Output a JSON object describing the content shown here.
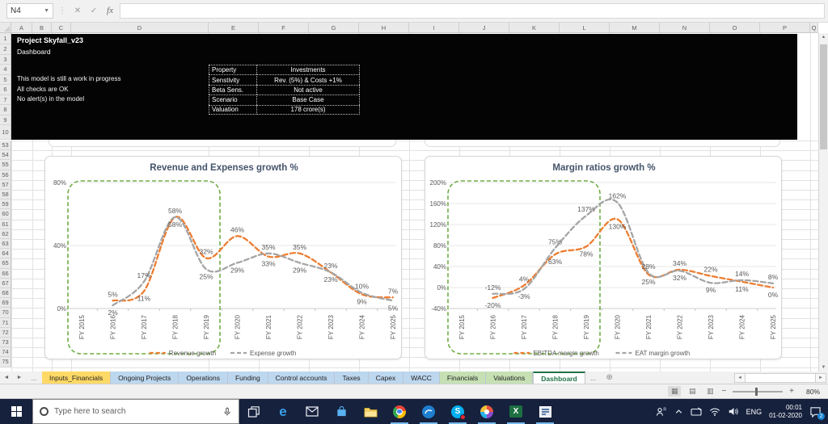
{
  "formula_bar": {
    "name_box": "N4",
    "fx_label": "fx",
    "cancel_glyph": "✕",
    "enter_glyph": "✓"
  },
  "columns": [
    "A",
    "B",
    "C",
    "D",
    "E",
    "F",
    "G",
    "H",
    "I",
    "J",
    "K",
    "L",
    "M",
    "N",
    "O",
    "P",
    "Q"
  ],
  "rows_top": [
    "1",
    "2",
    "3",
    "4",
    "5",
    "6",
    "7",
    "8",
    "9",
    "10"
  ],
  "rows_bottom": [
    "53",
    "54",
    "55",
    "56",
    "57",
    "58",
    "59",
    "60",
    "61",
    "62",
    "63",
    "64",
    "65",
    "66",
    "67",
    "68",
    "69",
    "70",
    "71",
    "72",
    "73",
    "74",
    "75"
  ],
  "dashboard_panel": {
    "title": "Project Skyfall_v23",
    "subtitle": "Dashboard",
    "messages": [
      "This model is still a work in progress",
      "All checks are OK",
      "No alert(s) in the model"
    ],
    "properties": [
      {
        "label": "Property",
        "value": "Investments"
      },
      {
        "label": "Senstivity",
        "value": "Rev. (5%) & Costs +1%"
      },
      {
        "label": "Beta Sens.",
        "value": "Not active"
      },
      {
        "label": "Scenario",
        "value": "Base Case"
      },
      {
        "label": "Valuation",
        "value": "178 crore(s)"
      }
    ]
  },
  "chart_data": [
    {
      "type": "line",
      "title": "Revenue and Expenses growth %",
      "categories": [
        "FY 2015",
        "FY 2016",
        "FY 2017",
        "FY 2018",
        "FY 2019",
        "FY 2020",
        "FY 2021",
        "FY 2022",
        "FY 2023",
        "FY 2024",
        "FY 2025"
      ],
      "series": [
        {
          "name": "Revenue growth",
          "color": "#ED7D31",
          "values": [
            null,
            5,
            11,
            58,
            32,
            46,
            33,
            35,
            23,
            9,
            7
          ]
        },
        {
          "name": "Expense growth",
          "color": "#A5A5A5",
          "values": [
            null,
            2,
            17,
            58,
            25,
            29,
            35,
            29,
            23,
            10,
            5
          ]
        }
      ],
      "yticks": [
        0,
        40,
        80
      ],
      "ylim": [
        0,
        85
      ],
      "grid": true,
      "legend_position": "bottom",
      "label_format": "percent",
      "annotation": {
        "shape": "dashed-rounded-rect",
        "color": "#70AD47",
        "covers": [
          "FY 2015",
          "FY 2019"
        ]
      }
    },
    {
      "type": "line",
      "title": "Margin ratios growth %",
      "categories": [
        "FY 2015",
        "FY 2016",
        "FY 2017",
        "FY 2018",
        "FY 2019",
        "FY 2020",
        "FY 2021",
        "FY 2022",
        "FY 2023",
        "FY 2024",
        "FY 2025"
      ],
      "series": [
        {
          "name": "EBITDA margin growth",
          "color": "#ED7D31",
          "values": [
            null,
            -20,
            4,
            63,
            78,
            130,
            25,
            34,
            22,
            11,
            0
          ]
        },
        {
          "name": "EAT margin growth",
          "color": "#A5A5A5",
          "values": [
            null,
            -12,
            -3,
            75,
            137,
            162,
            28,
            32,
            9,
            14,
            8
          ]
        }
      ],
      "yticks": [
        -40,
        0,
        40,
        80,
        120,
        160,
        200
      ],
      "ylim": [
        -55,
        210
      ],
      "grid": true,
      "legend_position": "bottom",
      "label_format": "percent",
      "annotation": {
        "shape": "dashed-rounded-rect",
        "color": "#70AD47",
        "covers": [
          "FY 2015",
          "FY 2019"
        ]
      }
    }
  ],
  "sheet_tabs": {
    "nav_left_glyph": "◄",
    "nav_right_glyph": "►",
    "overflow_left": "...",
    "overflow_right": "...",
    "add_glyph": "⊕",
    "tabs": [
      {
        "label": "Inputs_Financials",
        "style": "yellow"
      },
      {
        "label": "Ongoing Projects",
        "style": "blue"
      },
      {
        "label": "Operations",
        "style": "blue"
      },
      {
        "label": "Funding",
        "style": "blue"
      },
      {
        "label": "Control accounts",
        "style": "blue"
      },
      {
        "label": "Taxes",
        "style": "blue"
      },
      {
        "label": "Capex",
        "style": "blue"
      },
      {
        "label": "WACC",
        "style": "blue"
      },
      {
        "label": "Financials",
        "style": "green"
      },
      {
        "label": "Valuations",
        "style": "green"
      },
      {
        "label": "Dashboard",
        "style": "active"
      }
    ]
  },
  "status_bar": {
    "zoom_label": "80%",
    "minus": "−",
    "plus": "+"
  },
  "taskbar": {
    "search_placeholder": "Type here to search",
    "apps": [
      {
        "icon": "task-view-icon",
        "active": false
      },
      {
        "icon": "edge-icon",
        "active": false
      },
      {
        "icon": "mail-icon",
        "active": false
      },
      {
        "icon": "store-icon",
        "active": false
      },
      {
        "icon": "file-explorer-icon",
        "active": false
      },
      {
        "icon": "chrome-icon",
        "active": true
      },
      {
        "icon": "app-blue-icon",
        "active": true
      },
      {
        "icon": "skype-icon",
        "active": true
      },
      {
        "icon": "app-color-icon",
        "active": true
      },
      {
        "icon": "excel-icon",
        "active": true
      },
      {
        "icon": "app-window-icon",
        "active": true
      }
    ],
    "tray": {
      "lang": "ENG",
      "time": "00:01",
      "date": "01-02-2020",
      "badge": "2"
    }
  },
  "colors": {
    "accent_orange": "#ED7D31",
    "accent_gray": "#A5A5A5",
    "annotation_green": "#70AD47",
    "title_color": "#44546A",
    "taskbar_navy": "#16213d",
    "excel_green": "#217346"
  }
}
